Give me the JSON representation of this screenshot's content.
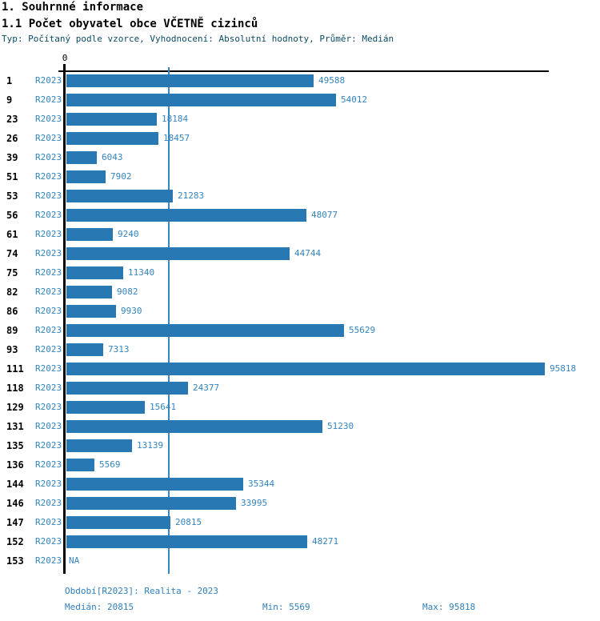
{
  "header": {
    "title": "1. Souhrnné informace",
    "subtitle": "1.1 Počet obyvatel obce VČETNĚ cizinců",
    "meta": "Typ: Počítaný podle vzorce, Vyhodnocení: Absolutní hodnoty, Průměr: Medián"
  },
  "chart_data": {
    "type": "bar",
    "orientation": "horizontal",
    "title": "1.1 Počet obyvatel obce VČETNĚ cizinců",
    "series_label": "R2023",
    "axis_origin_label": "0",
    "categories": [
      "1",
      "9",
      "23",
      "26",
      "39",
      "51",
      "53",
      "56",
      "61",
      "74",
      "75",
      "82",
      "86",
      "89",
      "93",
      "111",
      "118",
      "129",
      "131",
      "135",
      "136",
      "144",
      "146",
      "147",
      "152",
      "153"
    ],
    "values": [
      49588,
      54012,
      18184,
      18457,
      6043,
      7902,
      21283,
      48077,
      9240,
      44744,
      11340,
      9082,
      9930,
      55629,
      7313,
      95818,
      24377,
      15641,
      51230,
      13139,
      5569,
      35344,
      33995,
      20815,
      48271,
      null
    ],
    "na_label": "NA",
    "xlim": [
      0,
      95818
    ],
    "median_line_value": 20815,
    "grid": "median-only",
    "legend_position": "none",
    "bar_color": "#2878b4",
    "value_label_color": "#3585c0",
    "stats": {
      "median": 20815,
      "min": 5569,
      "max": 95818
    }
  },
  "footer": {
    "period": "Období[R2023]: Realita - 2023",
    "median": "Medián: 20815",
    "min": "Min: 5569",
    "max": "Max: 95818"
  }
}
